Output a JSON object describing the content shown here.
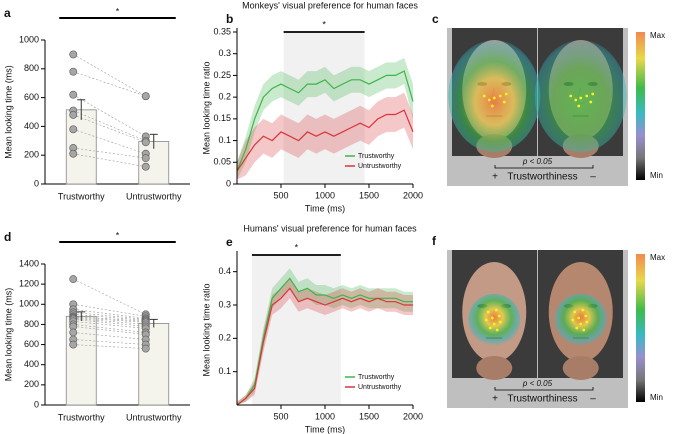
{
  "chart_data": [
    {
      "type": "bar",
      "panel_label": "a",
      "ylabel": "Mean looking time (ms)",
      "categories": [
        "Trustworthy",
        "Untrustworthy"
      ],
      "values": [
        515,
        295
      ],
      "errors": [
        70,
        50
      ],
      "points": [
        [
          900,
          780,
          620,
          510,
          480,
          380,
          250,
          210
        ],
        [
          610,
          610,
          330,
          300,
          290,
          210,
          180,
          120
        ]
      ],
      "significance": "*",
      "color": "#f4f3ec",
      "point_color": "#a6a6a6",
      "ylim": [
        0,
        1000
      ],
      "yticks": [
        0,
        200,
        400,
        600,
        800,
        1000
      ]
    },
    {
      "type": "line",
      "panel_label": "b",
      "title": "Monkeys' visual preference for human faces",
      "xlabel": "Time (ms)",
      "ylabel": "Mean looking time ratio",
      "x": [
        0,
        100,
        200,
        300,
        400,
        500,
        600,
        700,
        800,
        900,
        1000,
        1100,
        1200,
        1300,
        1400,
        1500,
        1600,
        1700,
        1800,
        1900,
        2000
      ],
      "series": [
        {
          "name": "Trustworthy",
          "color": "#3cb54a",
          "values": [
            0.03,
            0.08,
            0.15,
            0.2,
            0.22,
            0.23,
            0.22,
            0.21,
            0.23,
            0.23,
            0.24,
            0.22,
            0.23,
            0.24,
            0.24,
            0.23,
            0.24,
            0.25,
            0.25,
            0.26,
            0.19
          ],
          "upper": [
            0.05,
            0.11,
            0.18,
            0.23,
            0.25,
            0.26,
            0.25,
            0.24,
            0.26,
            0.26,
            0.27,
            0.25,
            0.26,
            0.27,
            0.27,
            0.26,
            0.27,
            0.28,
            0.28,
            0.29,
            0.23
          ],
          "lower": [
            0.01,
            0.05,
            0.12,
            0.17,
            0.19,
            0.2,
            0.19,
            0.18,
            0.2,
            0.2,
            0.21,
            0.19,
            0.2,
            0.21,
            0.21,
            0.2,
            0.21,
            0.22,
            0.22,
            0.23,
            0.15
          ]
        },
        {
          "name": "Untrustworthy",
          "color": "#d7363a",
          "values": [
            0.03,
            0.06,
            0.09,
            0.11,
            0.1,
            0.12,
            0.11,
            0.1,
            0.12,
            0.11,
            0.12,
            0.11,
            0.12,
            0.13,
            0.14,
            0.13,
            0.15,
            0.16,
            0.16,
            0.17,
            0.12
          ],
          "upper": [
            0.05,
            0.1,
            0.13,
            0.15,
            0.14,
            0.16,
            0.15,
            0.14,
            0.16,
            0.15,
            0.16,
            0.15,
            0.16,
            0.17,
            0.18,
            0.17,
            0.19,
            0.2,
            0.2,
            0.21,
            0.16
          ],
          "lower": [
            0.01,
            0.02,
            0.05,
            0.07,
            0.06,
            0.08,
            0.07,
            0.06,
            0.08,
            0.07,
            0.08,
            0.07,
            0.08,
            0.09,
            0.1,
            0.09,
            0.11,
            0.12,
            0.12,
            0.13,
            0.08
          ]
        }
      ],
      "significance": "*",
      "significant_window": [
        530,
        1450
      ],
      "xlim": [
        0,
        2000
      ],
      "ylim": [
        0,
        0.35
      ],
      "xticks": [
        500,
        1000,
        1500,
        2000
      ],
      "yticks": [
        0,
        0.05,
        0.1,
        0.15,
        0.2,
        0.25,
        0.3,
        0.35
      ],
      "legend": "lower-right"
    },
    {
      "type": "bar",
      "panel_label": "d",
      "ylabel": "Mean looking time (ms)",
      "categories": [
        "Trustworthy",
        "Untrustworthy"
      ],
      "values": [
        880,
        810
      ],
      "errors": [
        45,
        40
      ],
      "points": [
        [
          1250,
          1000,
          950,
          920,
          900,
          880,
          870,
          860,
          850,
          830,
          800,
          780,
          720,
          650,
          600
        ],
        [
          900,
          880,
          860,
          850,
          840,
          830,
          820,
          800,
          780,
          760,
          720,
          700,
          650,
          600,
          560
        ]
      ],
      "significance": "*",
      "color": "#f4f3ec",
      "point_color": "#a6a6a6",
      "ylim": [
        0,
        1400
      ],
      "yticks": [
        0,
        200,
        400,
        600,
        800,
        1000,
        1200,
        1400
      ]
    },
    {
      "type": "line",
      "panel_label": "e",
      "title": "Humans' visual preference for human faces",
      "xlabel": "Time (ms)",
      "ylabel": "Mean looking time ratio",
      "x": [
        0,
        100,
        200,
        300,
        400,
        500,
        600,
        700,
        800,
        900,
        1000,
        1100,
        1200,
        1300,
        1400,
        1500,
        1600,
        1700,
        1800,
        1900,
        2000
      ],
      "series": [
        {
          "name": "Trustworthy",
          "color": "#3cb54a",
          "values": [
            0,
            0.02,
            0.06,
            0.2,
            0.32,
            0.35,
            0.38,
            0.34,
            0.35,
            0.33,
            0.33,
            0.32,
            0.33,
            0.32,
            0.33,
            0.32,
            0.32,
            0.32,
            0.32,
            0.31,
            0.31
          ],
          "upper": [
            0.01,
            0.03,
            0.08,
            0.23,
            0.35,
            0.38,
            0.41,
            0.37,
            0.38,
            0.36,
            0.36,
            0.35,
            0.36,
            0.35,
            0.36,
            0.35,
            0.35,
            0.35,
            0.35,
            0.34,
            0.34
          ],
          "lower": [
            0,
            0.01,
            0.04,
            0.17,
            0.29,
            0.32,
            0.35,
            0.31,
            0.32,
            0.3,
            0.3,
            0.29,
            0.3,
            0.29,
            0.3,
            0.29,
            0.29,
            0.29,
            0.29,
            0.28,
            0.28
          ]
        },
        {
          "name": "Untrustworthy",
          "color": "#d7363a",
          "values": [
            0,
            0.02,
            0.05,
            0.19,
            0.3,
            0.32,
            0.35,
            0.31,
            0.32,
            0.31,
            0.3,
            0.31,
            0.32,
            0.31,
            0.32,
            0.31,
            0.32,
            0.31,
            0.31,
            0.3,
            0.3
          ],
          "upper": [
            0.01,
            0.03,
            0.07,
            0.22,
            0.33,
            0.35,
            0.38,
            0.34,
            0.35,
            0.34,
            0.33,
            0.34,
            0.35,
            0.34,
            0.35,
            0.34,
            0.35,
            0.34,
            0.34,
            0.33,
            0.33
          ],
          "lower": [
            0,
            0.01,
            0.03,
            0.16,
            0.27,
            0.29,
            0.32,
            0.28,
            0.29,
            0.28,
            0.27,
            0.28,
            0.29,
            0.28,
            0.29,
            0.28,
            0.29,
            0.28,
            0.28,
            0.27,
            0.27
          ]
        }
      ],
      "significance": "*",
      "significant_window": [
        170,
        1180
      ],
      "xlim": [
        0,
        2000
      ],
      "ylim": [
        0,
        0.45
      ],
      "xticks": [
        500,
        1000,
        1500,
        2000
      ],
      "yticks": [
        0.1,
        0.2,
        0.3,
        0.4
      ],
      "legend": "lower-right"
    }
  ],
  "heatmaps": [
    {
      "panel_label": "c",
      "significance": "p < 0.05",
      "plus": "+",
      "axis_label": "Trustworthiness",
      "minus": "–",
      "colorbar_max": "Max",
      "colorbar_min": "Min"
    },
    {
      "panel_label": "f",
      "significance": "p < 0.05",
      "plus": "+",
      "axis_label": "Trustworthiness",
      "minus": "–",
      "colorbar_max": "Max",
      "colorbar_min": "Min"
    }
  ]
}
